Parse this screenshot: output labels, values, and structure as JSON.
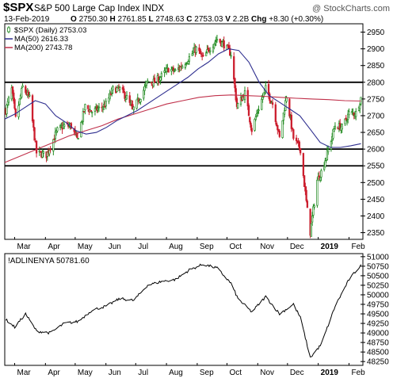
{
  "header": {
    "symbol": "$SPX",
    "name": "S&P 500 Large Cap Index",
    "exchange": "INDX",
    "watermark": "@ StockCharts.com",
    "date": "13-Feb-2019",
    "ohlc": {
      "open_label": "O",
      "open": "2750.30",
      "high_label": "H",
      "high": "2761.85",
      "low_label": "L",
      "low": "2748.63",
      "close_label": "C",
      "close": "2753.03",
      "volume_label": "V",
      "volume": "2.2B",
      "change_label": "Chg",
      "change": "+8.30 (+0.30%)"
    }
  },
  "chart_data": [
    {
      "type": "candlestick",
      "legend": [
        {
          "label": "$SPX (Daily) 2753.03",
          "marker": "candle"
        },
        {
          "label": "MA(50) 2616.33",
          "color": "#2e2e8f"
        },
        {
          "label": "MA(200) 2743.78",
          "color": "#c0304a"
        }
      ],
      "ylim": [
        2330,
        2975
      ],
      "yticks": [
        2350,
        2400,
        2450,
        2500,
        2550,
        2600,
        2650,
        2700,
        2750,
        2800,
        2850,
        2900,
        2950
      ],
      "ytick_labels": [
        "2350",
        "2400",
        "2450",
        "2500",
        "2550",
        "2600",
        "2650",
        "2700",
        "2750",
        "2800",
        "2850",
        "2900",
        "2950"
      ],
      "horizontal_lines": [
        2800,
        2600,
        2550
      ],
      "x_labels": [
        "Mar",
        "Apr",
        "May",
        "Jun",
        "Jul",
        "Aug",
        "Sep",
        "Oct",
        "Nov",
        "Dec",
        "2019",
        "Feb"
      ],
      "colors": {
        "up": "#1f8a1f",
        "down": "#cc1f2f",
        "ma50": "#2e2e8f",
        "ma200": "#c0304a",
        "hline": "#000000"
      },
      "close_series": [
        {
          "date": "2018-02-20",
          "close": 2716
        },
        {
          "date": "2018-02-26",
          "close": 2779
        },
        {
          "date": "2018-03-02",
          "close": 2691
        },
        {
          "date": "2018-03-09",
          "close": 2786
        },
        {
          "date": "2018-03-16",
          "close": 2752
        },
        {
          "date": "2018-03-23",
          "close": 2589
        },
        {
          "date": "2018-04-02",
          "close": 2582
        },
        {
          "date": "2018-04-13",
          "close": 2656
        },
        {
          "date": "2018-04-20",
          "close": 2670
        },
        {
          "date": "2018-04-27",
          "close": 2669
        },
        {
          "date": "2018-05-03",
          "close": 2629
        },
        {
          "date": "2018-05-11",
          "close": 2727
        },
        {
          "date": "2018-05-18",
          "close": 2712
        },
        {
          "date": "2018-05-25",
          "close": 2721
        },
        {
          "date": "2018-06-01",
          "close": 2734
        },
        {
          "date": "2018-06-08",
          "close": 2779
        },
        {
          "date": "2018-06-15",
          "close": 2779
        },
        {
          "date": "2018-06-22",
          "close": 2754
        },
        {
          "date": "2018-06-28",
          "close": 2716
        },
        {
          "date": "2018-07-06",
          "close": 2759
        },
        {
          "date": "2018-07-13",
          "close": 2801
        },
        {
          "date": "2018-07-20",
          "close": 2801
        },
        {
          "date": "2018-07-27",
          "close": 2818
        },
        {
          "date": "2018-08-03",
          "close": 2840
        },
        {
          "date": "2018-08-10",
          "close": 2833
        },
        {
          "date": "2018-08-17",
          "close": 2850
        },
        {
          "date": "2018-08-24",
          "close": 2874
        },
        {
          "date": "2018-08-31",
          "close": 2901
        },
        {
          "date": "2018-09-07",
          "close": 2871
        },
        {
          "date": "2018-09-14",
          "close": 2904
        },
        {
          "date": "2018-09-21",
          "close": 2929
        },
        {
          "date": "2018-09-28",
          "close": 2913
        },
        {
          "date": "2018-10-05",
          "close": 2885
        },
        {
          "date": "2018-10-11",
          "close": 2728
        },
        {
          "date": "2018-10-19",
          "close": 2767
        },
        {
          "date": "2018-10-26",
          "close": 2658
        },
        {
          "date": "2018-11-02",
          "close": 2723
        },
        {
          "date": "2018-11-09",
          "close": 2781
        },
        {
          "date": "2018-11-16",
          "close": 2736
        },
        {
          "date": "2018-11-23",
          "close": 2633
        },
        {
          "date": "2018-11-30",
          "close": 2760
        },
        {
          "date": "2018-12-07",
          "close": 2633
        },
        {
          "date": "2018-12-14",
          "close": 2599
        },
        {
          "date": "2018-12-21",
          "close": 2416
        },
        {
          "date": "2018-12-24",
          "close": 2351
        },
        {
          "date": "2018-12-31",
          "close": 2507
        },
        {
          "date": "2019-01-04",
          "close": 2532
        },
        {
          "date": "2019-01-11",
          "close": 2596
        },
        {
          "date": "2019-01-18",
          "close": 2671
        },
        {
          "date": "2019-01-25",
          "close": 2665
        },
        {
          "date": "2019-02-01",
          "close": 2707
        },
        {
          "date": "2019-02-08",
          "close": 2708
        },
        {
          "date": "2019-02-13",
          "close": 2753
        }
      ],
      "ma50_series": [
        2690,
        2705,
        2725,
        2745,
        2735,
        2700,
        2680,
        2655,
        2645,
        2650,
        2665,
        2685,
        2700,
        2715,
        2735,
        2755,
        2775,
        2795,
        2815,
        2840,
        2860,
        2885,
        2900,
        2895,
        2860,
        2800,
        2760,
        2740,
        2720,
        2700,
        2660,
        2620,
        2605,
        2605,
        2610,
        2616.33
      ],
      "ma200_series": [
        2560,
        2580,
        2600,
        2620,
        2640,
        2655,
        2670,
        2690,
        2705,
        2720,
        2735,
        2745,
        2755,
        2760,
        2762,
        2760,
        2758,
        2755,
        2752,
        2750,
        2748,
        2745,
        2743.78
      ]
    },
    {
      "type": "line",
      "legend": [
        {
          "label": "!ADLINENYA 50781.60"
        }
      ],
      "ylim": [
        48150,
        51080
      ],
      "yticks": [
        48250,
        48500,
        48750,
        49000,
        49250,
        49500,
        49750,
        50000,
        50250,
        50500,
        50750,
        51000
      ],
      "ytick_labels": [
        "48250",
        "48500",
        "48750",
        "49000",
        "49250",
        "49500",
        "49750",
        "50000",
        "50250",
        "50500",
        "50750",
        "51000"
      ],
      "x_labels": [
        "Mar",
        "Apr",
        "May",
        "Jun",
        "Jul",
        "Aug",
        "Sep",
        "Oct",
        "Nov",
        "Dec",
        "2019",
        "Feb"
      ],
      "color": "#000000",
      "close_series": [
        {
          "date": "2018-02-20",
          "value": 49350
        },
        {
          "date": "2018-03-01",
          "value": 49150
        },
        {
          "date": "2018-03-12",
          "value": 49500
        },
        {
          "date": "2018-03-23",
          "value": 49050
        },
        {
          "date": "2018-04-06",
          "value": 49000
        },
        {
          "date": "2018-04-20",
          "value": 49250
        },
        {
          "date": "2018-05-04",
          "value": 49300
        },
        {
          "date": "2018-05-18",
          "value": 49600
        },
        {
          "date": "2018-06-01",
          "value": 49700
        },
        {
          "date": "2018-06-15",
          "value": 49900
        },
        {
          "date": "2018-06-29",
          "value": 49850
        },
        {
          "date": "2018-07-13",
          "value": 50250
        },
        {
          "date": "2018-07-27",
          "value": 50350
        },
        {
          "date": "2018-08-10",
          "value": 50400
        },
        {
          "date": "2018-08-24",
          "value": 50650
        },
        {
          "date": "2018-09-07",
          "value": 50800
        },
        {
          "date": "2018-09-21",
          "value": 50700
        },
        {
          "date": "2018-10-05",
          "value": 50300
        },
        {
          "date": "2018-10-12",
          "value": 49900
        },
        {
          "date": "2018-10-26",
          "value": 49550
        },
        {
          "date": "2018-11-09",
          "value": 49950
        },
        {
          "date": "2018-11-23",
          "value": 49500
        },
        {
          "date": "2018-12-07",
          "value": 49750
        },
        {
          "date": "2018-12-14",
          "value": 49400
        },
        {
          "date": "2018-12-24",
          "value": 48350
        },
        {
          "date": "2019-01-04",
          "value": 48700
        },
        {
          "date": "2019-01-18",
          "value": 49700
        },
        {
          "date": "2019-02-01",
          "value": 50400
        },
        {
          "date": "2019-02-13",
          "value": 50781.6
        }
      ]
    }
  ]
}
